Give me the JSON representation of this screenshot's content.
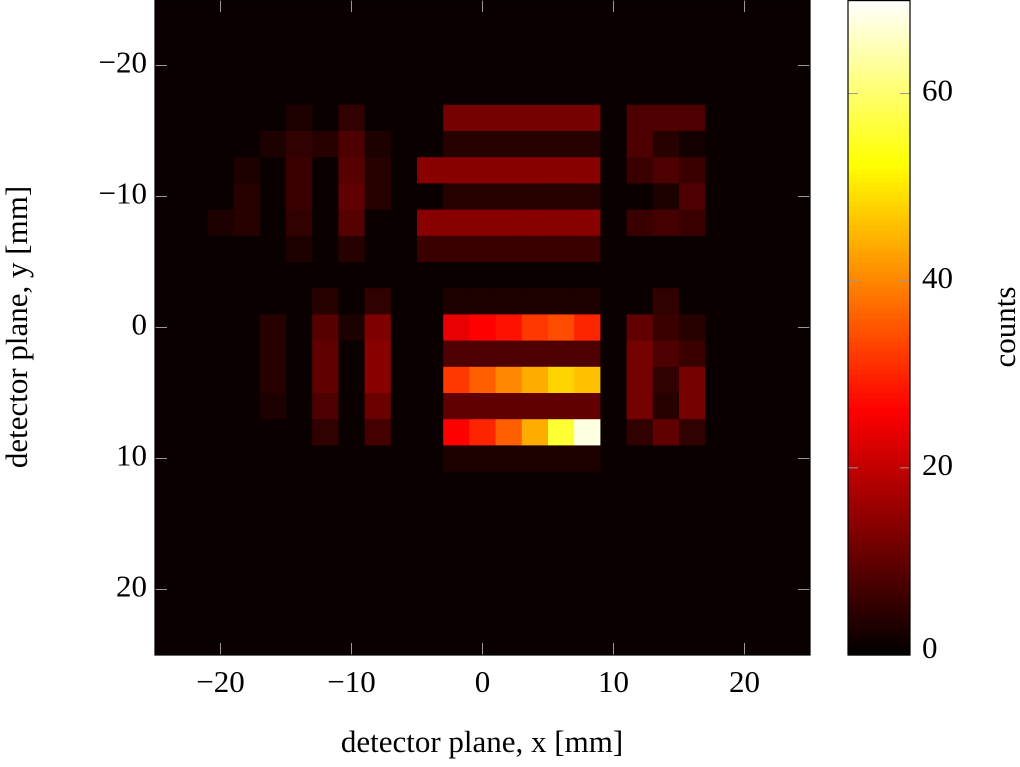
{
  "chart_data": {
    "type": "heatmap",
    "xlabel": "detector plane, x [mm]",
    "ylabel": "detector plane, y [mm]",
    "colorbar_label": "counts",
    "colormap": "hot",
    "xlim": [
      -25,
      25
    ],
    "ylim": [
      -25,
      25
    ],
    "y_inverted": true,
    "xticks": [
      {
        "value": -20,
        "label": "−20"
      },
      {
        "value": -10,
        "label": "−10"
      },
      0,
      10,
      20
    ],
    "yticks": [
      {
        "value": -20,
        "label": "−20"
      },
      {
        "value": -10,
        "label": "−10"
      },
      0,
      10,
      20
    ],
    "clim": [
      0,
      70
    ],
    "cticks": [
      0,
      20,
      40,
      60
    ],
    "x": [
      -24,
      -22,
      -20,
      -18,
      -16,
      -14,
      -12,
      -10,
      -8,
      -6,
      -4,
      -2,
      0,
      2,
      4,
      6,
      8,
      10,
      12,
      14,
      16,
      18,
      20,
      22,
      24
    ],
    "y": [
      -24,
      -22,
      -20,
      -18,
      -16,
      -14,
      -12,
      -10,
      -8,
      -6,
      -4,
      -2,
      0,
      2,
      4,
      6,
      8,
      10,
      12,
      14,
      16,
      18,
      20,
      22,
      24
    ],
    "z": [
      [
        1,
        1,
        1,
        1,
        1,
        1,
        1,
        1,
        1,
        1,
        1,
        1,
        1,
        1,
        1,
        1,
        1,
        1,
        1,
        1,
        1,
        1,
        1,
        1,
        1
      ],
      [
        1,
        1,
        1,
        1,
        1,
        1,
        1,
        1,
        1,
        1,
        1,
        1,
        1,
        1,
        1,
        1,
        1,
        1,
        1,
        1,
        1,
        1,
        1,
        1,
        1
      ],
      [
        1,
        1,
        1,
        1,
        1,
        1,
        1,
        1,
        1,
        1,
        1,
        1,
        1,
        1,
        1,
        1,
        1,
        1,
        1,
        1,
        1,
        1,
        1,
        1,
        1
      ],
      [
        1,
        1,
        1,
        1,
        1,
        1,
        1,
        1,
        1,
        1,
        1,
        1,
        1,
        1,
        1,
        1,
        1,
        1,
        1,
        1,
        1,
        1,
        1,
        1,
        1
      ],
      [
        1,
        1,
        1,
        1,
        1,
        3,
        1,
        5,
        1,
        1,
        1,
        12,
        12,
        12,
        12,
        12,
        12,
        1,
        8,
        8,
        8,
        1,
        1,
        1,
        1
      ],
      [
        1,
        1,
        1,
        1,
        3,
        5,
        4,
        8,
        3,
        1,
        1,
        4,
        4,
        4,
        4,
        4,
        4,
        1,
        8,
        4,
        2,
        1,
        1,
        1,
        1
      ],
      [
        1,
        1,
        1,
        3,
        1,
        6,
        1,
        9,
        4,
        1,
        14,
        14,
        14,
        14,
        14,
        14,
        14,
        1,
        6,
        8,
        6,
        1,
        1,
        1,
        1
      ],
      [
        1,
        1,
        1,
        4,
        1,
        6,
        1,
        10,
        4,
        1,
        1,
        4,
        4,
        4,
        4,
        4,
        4,
        1,
        1,
        3,
        8,
        1,
        1,
        1,
        1
      ],
      [
        1,
        1,
        3,
        4,
        1,
        5,
        1,
        9,
        1,
        1,
        14,
        14,
        14,
        14,
        14,
        14,
        14,
        1,
        6,
        7,
        6,
        1,
        1,
        1,
        1
      ],
      [
        1,
        1,
        1,
        1,
        1,
        3,
        1,
        4,
        1,
        1,
        6,
        6,
        6,
        6,
        6,
        6,
        6,
        1,
        1,
        1,
        1,
        1,
        1,
        1,
        1
      ],
      [
        1,
        1,
        1,
        1,
        1,
        1,
        1,
        1,
        1,
        1,
        1,
        1,
        1,
        1,
        1,
        1,
        1,
        1,
        1,
        1,
        1,
        1,
        1,
        1,
        1
      ],
      [
        1,
        1,
        1,
        1,
        1,
        1,
        4,
        1,
        5,
        1,
        1,
        3,
        3,
        3,
        3,
        3,
        3,
        1,
        1,
        5,
        1,
        1,
        1,
        1,
        1
      ],
      [
        1,
        1,
        1,
        1,
        4,
        1,
        9,
        3,
        13,
        1,
        1,
        24,
        26,
        28,
        32,
        34,
        30,
        1,
        10,
        6,
        4,
        1,
        1,
        1,
        1
      ],
      [
        1,
        1,
        1,
        1,
        4,
        1,
        10,
        1,
        14,
        1,
        1,
        8,
        8,
        8,
        8,
        8,
        8,
        1,
        12,
        8,
        6,
        1,
        1,
        1,
        1
      ],
      [
        1,
        1,
        1,
        1,
        4,
        1,
        10,
        1,
        14,
        1,
        1,
        32,
        36,
        40,
        44,
        48,
        46,
        1,
        12,
        5,
        12,
        1,
        1,
        1,
        1
      ],
      [
        1,
        1,
        1,
        1,
        3,
        1,
        8,
        1,
        11,
        1,
        1,
        10,
        10,
        10,
        10,
        10,
        10,
        1,
        12,
        4,
        12,
        1,
        1,
        1,
        1
      ],
      [
        1,
        1,
        1,
        1,
        1,
        1,
        5,
        1,
        7,
        1,
        1,
        26,
        30,
        36,
        44,
        56,
        68,
        1,
        5,
        10,
        5,
        1,
        1,
        1,
        1
      ],
      [
        1,
        1,
        1,
        1,
        1,
        1,
        1,
        1,
        1,
        1,
        1,
        3,
        3,
        3,
        3,
        3,
        3,
        1,
        1,
        1,
        1,
        1,
        1,
        1,
        1
      ],
      [
        1,
        1,
        1,
        1,
        1,
        1,
        1,
        1,
        1,
        1,
        1,
        1,
        1,
        1,
        1,
        1,
        1,
        1,
        1,
        1,
        1,
        1,
        1,
        1,
        1
      ],
      [
        1,
        1,
        1,
        1,
        1,
        1,
        1,
        1,
        1,
        1,
        1,
        1,
        1,
        1,
        1,
        1,
        1,
        1,
        1,
        1,
        1,
        1,
        1,
        1,
        1
      ],
      [
        1,
        1,
        1,
        1,
        1,
        1,
        1,
        1,
        1,
        1,
        1,
        1,
        1,
        1,
        1,
        1,
        1,
        1,
        1,
        1,
        1,
        1,
        1,
        1,
        1
      ],
      [
        1,
        1,
        1,
        1,
        1,
        1,
        1,
        1,
        1,
        1,
        1,
        1,
        1,
        1,
        1,
        1,
        1,
        1,
        1,
        1,
        1,
        1,
        1,
        1,
        1
      ],
      [
        1,
        1,
        1,
        1,
        1,
        1,
        1,
        1,
        1,
        1,
        1,
        1,
        1,
        1,
        1,
        1,
        1,
        1,
        1,
        1,
        1,
        1,
        1,
        1,
        1
      ],
      [
        1,
        1,
        1,
        1,
        1,
        1,
        1,
        1,
        1,
        1,
        1,
        1,
        1,
        1,
        1,
        1,
        1,
        1,
        1,
        1,
        1,
        1,
        1,
        1,
        1
      ],
      [
        1,
        1,
        1,
        1,
        1,
        1,
        1,
        1,
        1,
        1,
        1,
        1,
        1,
        1,
        1,
        1,
        1,
        1,
        1,
        1,
        1,
        1,
        1,
        1,
        1
      ]
    ]
  }
}
